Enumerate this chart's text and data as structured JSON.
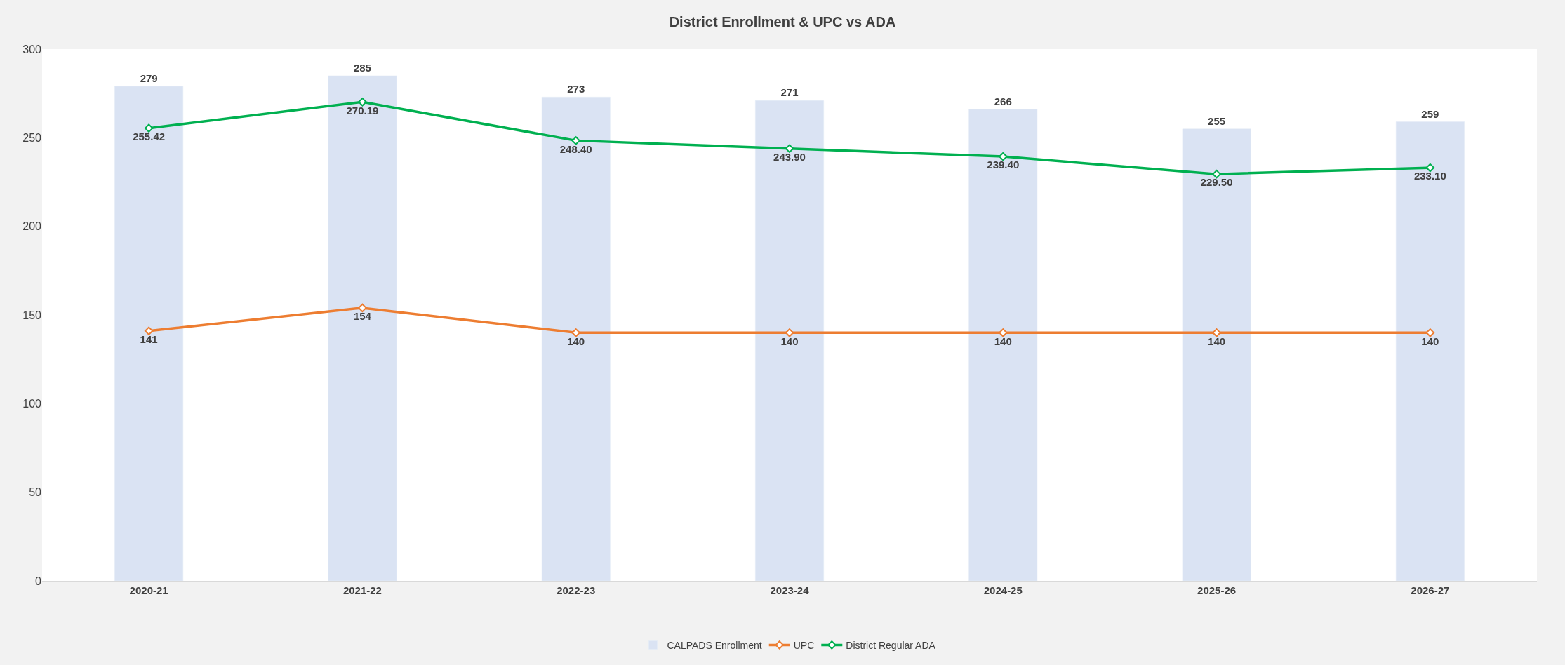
{
  "chart_data": {
    "type": "bar",
    "title": "District Enrollment & UPC vs ADA",
    "categories": [
      "2020-21",
      "2021-22",
      "2022-23",
      "2023-24",
      "2024-25",
      "2025-26",
      "2026-27"
    ],
    "series": [
      {
        "name": "CALPADS Enrollment",
        "color": "#dae3f3",
        "values": [
          279,
          285,
          273,
          271,
          266,
          255,
          259
        ],
        "value_labels": [
          "279",
          "285",
          "273",
          "271",
          "266",
          "255",
          "259"
        ]
      },
      {
        "name": "UPC",
        "type": "line",
        "color": "#ed7d31",
        "values": [
          141,
          154,
          140,
          140,
          140,
          140,
          140
        ],
        "value_labels": [
          "141",
          "154",
          "140",
          "140",
          "140",
          "140",
          "140"
        ]
      },
      {
        "name": "District Regular ADA",
        "type": "line",
        "color": "#00b050",
        "values": [
          255.42,
          270.19,
          248.4,
          243.9,
          239.4,
          229.5,
          233.1
        ],
        "value_labels": [
          "255.42",
          "270.19",
          "248.40",
          "243.90",
          "239.40",
          "229.50",
          "233.10"
        ]
      }
    ],
    "ylim": [
      0,
      300
    ],
    "yticks": [
      0,
      50,
      100,
      150,
      200,
      250,
      300
    ],
    "legend": "bottom",
    "marker": "diamond",
    "line_style": "solid"
  }
}
